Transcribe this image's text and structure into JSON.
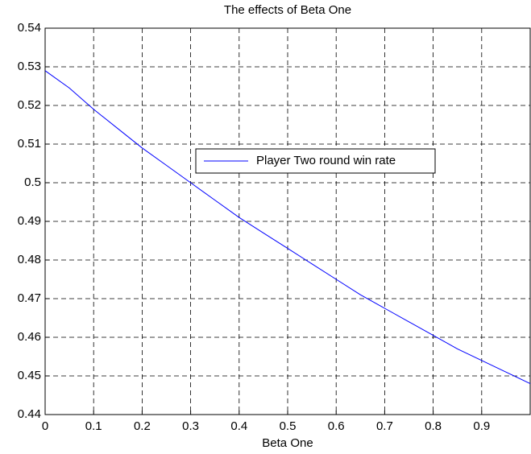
{
  "chart_data": {
    "type": "line",
    "title": "The effects of Beta One",
    "x_label": "Beta One",
    "x": [
      0,
      0.05,
      0.1,
      0.15,
      0.2,
      0.25,
      0.3,
      0.35,
      0.4,
      0.45,
      0.5,
      0.55,
      0.6,
      0.65,
      0.7,
      0.75,
      0.8,
      0.85,
      0.9,
      0.95,
      1.0
    ],
    "series": [
      {
        "name": "Player Two round win rate",
        "color": "#0000ff",
        "values": [
          0.529,
          0.5245,
          0.519,
          0.514,
          0.509,
          0.5045,
          0.5,
          0.4955,
          0.491,
          0.487,
          0.483,
          0.479,
          0.475,
          0.471,
          0.4675,
          0.464,
          0.4605,
          0.457,
          0.454,
          0.451,
          0.448
        ]
      }
    ],
    "xlim": [
      0,
      1
    ],
    "xticks": [
      0,
      0.1,
      0.2,
      0.3,
      0.4,
      0.5,
      0.6,
      0.7,
      0.8,
      0.9
    ],
    "ylim": [
      0.44,
      0.54
    ],
    "yticks": [
      0.44,
      0.45,
      0.46,
      0.47,
      0.48,
      0.49,
      0.5,
      0.51,
      0.52,
      0.53,
      0.54
    ],
    "grid": true,
    "legend_position": "center"
  }
}
